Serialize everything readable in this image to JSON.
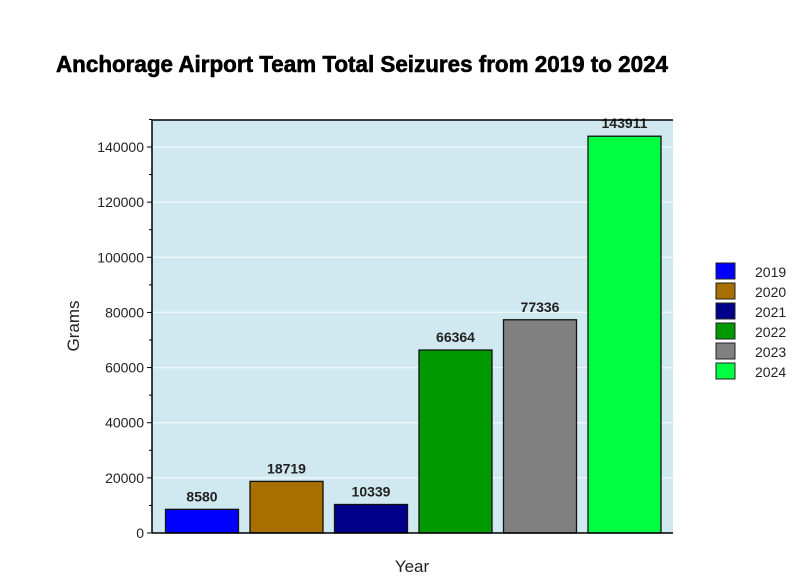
{
  "chart_data": {
    "type": "bar",
    "title": "Anchorage Airport Team Total Seizures from 2019 to 2024",
    "xlabel": "Year",
    "ylabel": "Grams",
    "categories": [
      "2019",
      "2020",
      "2021",
      "2022",
      "2023",
      "2024"
    ],
    "values": [
      8580,
      18719,
      10339,
      66364,
      77336,
      143911
    ],
    "colors": [
      "#0000ff",
      "#a66f00",
      "#00008b",
      "#009900",
      "#808080",
      "#00ff40"
    ],
    "ylim": [
      0,
      150000
    ],
    "yticks": [
      0,
      20000,
      40000,
      60000,
      80000,
      100000,
      120000,
      140000
    ],
    "grid": true,
    "plot_background": "#d0e8ef",
    "legend": {
      "placement": "right",
      "entries": [
        "2019",
        "2020",
        "2021",
        "2022",
        "2023",
        "2024"
      ]
    }
  }
}
